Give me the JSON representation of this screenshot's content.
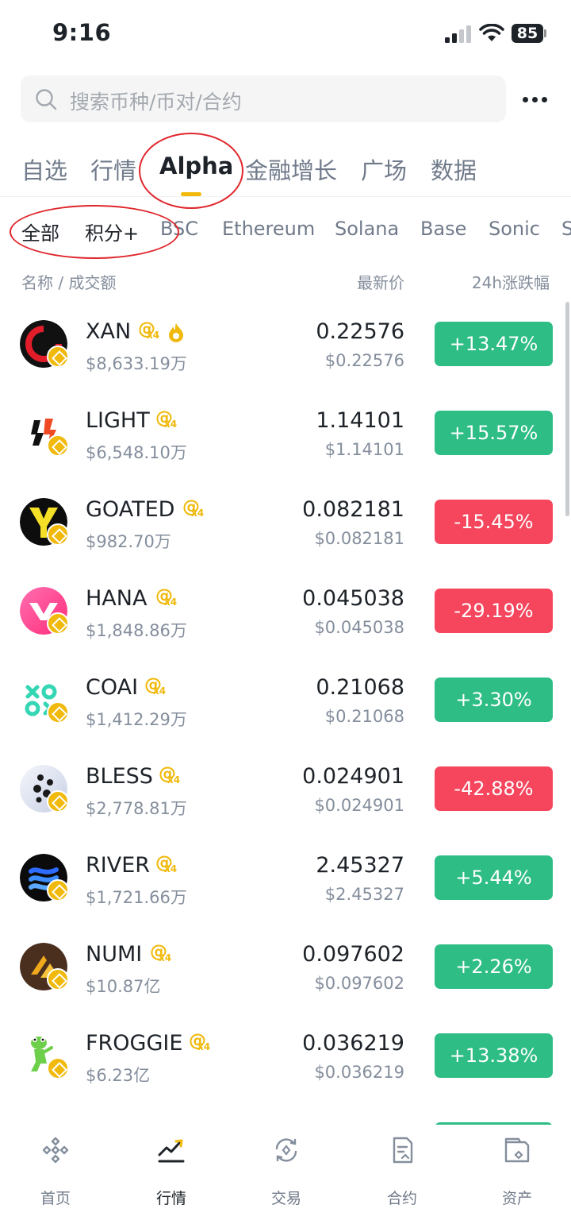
{
  "status": {
    "time": "9:16",
    "battery": "85"
  },
  "search": {
    "placeholder": "搜索币种/币对/合约"
  },
  "main_tabs": [
    {
      "label": "自选"
    },
    {
      "label": "行情"
    },
    {
      "label": "Alpha",
      "active": true
    },
    {
      "label": "金融增长"
    },
    {
      "label": "广场"
    },
    {
      "label": "数据"
    }
  ],
  "sub_tabs": [
    {
      "label": "全部",
      "active": true
    },
    {
      "label": "积分+"
    },
    {
      "label": "BSC"
    },
    {
      "label": "Ethereum"
    },
    {
      "label": "Solana"
    },
    {
      "label": "Base"
    },
    {
      "label": "Sonic"
    },
    {
      "label": "S"
    }
  ],
  "list_header": {
    "name": "名称 / 成交额",
    "price": "最新价",
    "change": "24h涨跌幅"
  },
  "alpha_tag": {
    "symbol": "@",
    "multiplier": "x4"
  },
  "coins": [
    {
      "symbol": "XAN",
      "volume": "$8,633.19万",
      "price": "0.22576",
      "usd": "$0.22576",
      "change": "+13.47%",
      "direction": "up",
      "hot": true,
      "logo_icon": "xan-logo-icon"
    },
    {
      "symbol": "LIGHT",
      "volume": "$6,548.10万",
      "price": "1.14101",
      "usd": "$1.14101",
      "change": "+15.57%",
      "direction": "up",
      "logo_icon": "light-logo-icon"
    },
    {
      "symbol": "GOATED",
      "volume": "$982.70万",
      "price": "0.082181",
      "usd": "$0.082181",
      "change": "-15.45%",
      "direction": "down",
      "logo_icon": "goated-logo-icon"
    },
    {
      "symbol": "HANA",
      "volume": "$1,848.86万",
      "price": "0.045038",
      "usd": "$0.045038",
      "change": "-29.19%",
      "direction": "down",
      "logo_icon": "hana-logo-icon"
    },
    {
      "symbol": "COAI",
      "volume": "$1,412.29万",
      "price": "0.21068",
      "usd": "$0.21068",
      "change": "+3.30%",
      "direction": "up",
      "logo_icon": "coai-logo-icon"
    },
    {
      "symbol": "BLESS",
      "volume": "$2,778.81万",
      "price": "0.024901",
      "usd": "$0.024901",
      "change": "-42.88%",
      "direction": "down",
      "logo_icon": "bless-logo-icon"
    },
    {
      "symbol": "RIVER",
      "volume": "$1,721.66万",
      "price": "2.45327",
      "usd": "$2.45327",
      "change": "+5.44%",
      "direction": "up",
      "logo_icon": "river-logo-icon"
    },
    {
      "symbol": "NUMI",
      "volume": "$10.87亿",
      "price": "0.097602",
      "usd": "$0.097602",
      "change": "+2.26%",
      "direction": "up",
      "logo_icon": "numi-logo-icon"
    },
    {
      "symbol": "FROGGIE",
      "volume": "$6.23亿",
      "price": "0.036219",
      "usd": "$0.036219",
      "change": "+13.38%",
      "direction": "up",
      "logo_icon": "froggie-logo-icon"
    }
  ],
  "bottom_nav": [
    {
      "label": "首页",
      "icon": "home-icon"
    },
    {
      "label": "行情",
      "icon": "markets-icon",
      "active": true
    },
    {
      "label": "交易",
      "icon": "trade-icon"
    },
    {
      "label": "合约",
      "icon": "futures-icon"
    },
    {
      "label": "资产",
      "icon": "wallet-icon"
    }
  ],
  "colors": {
    "accent": "#f0b90b",
    "up": "#2ebd85",
    "down": "#f6465d",
    "annotation": "#e0272c"
  }
}
